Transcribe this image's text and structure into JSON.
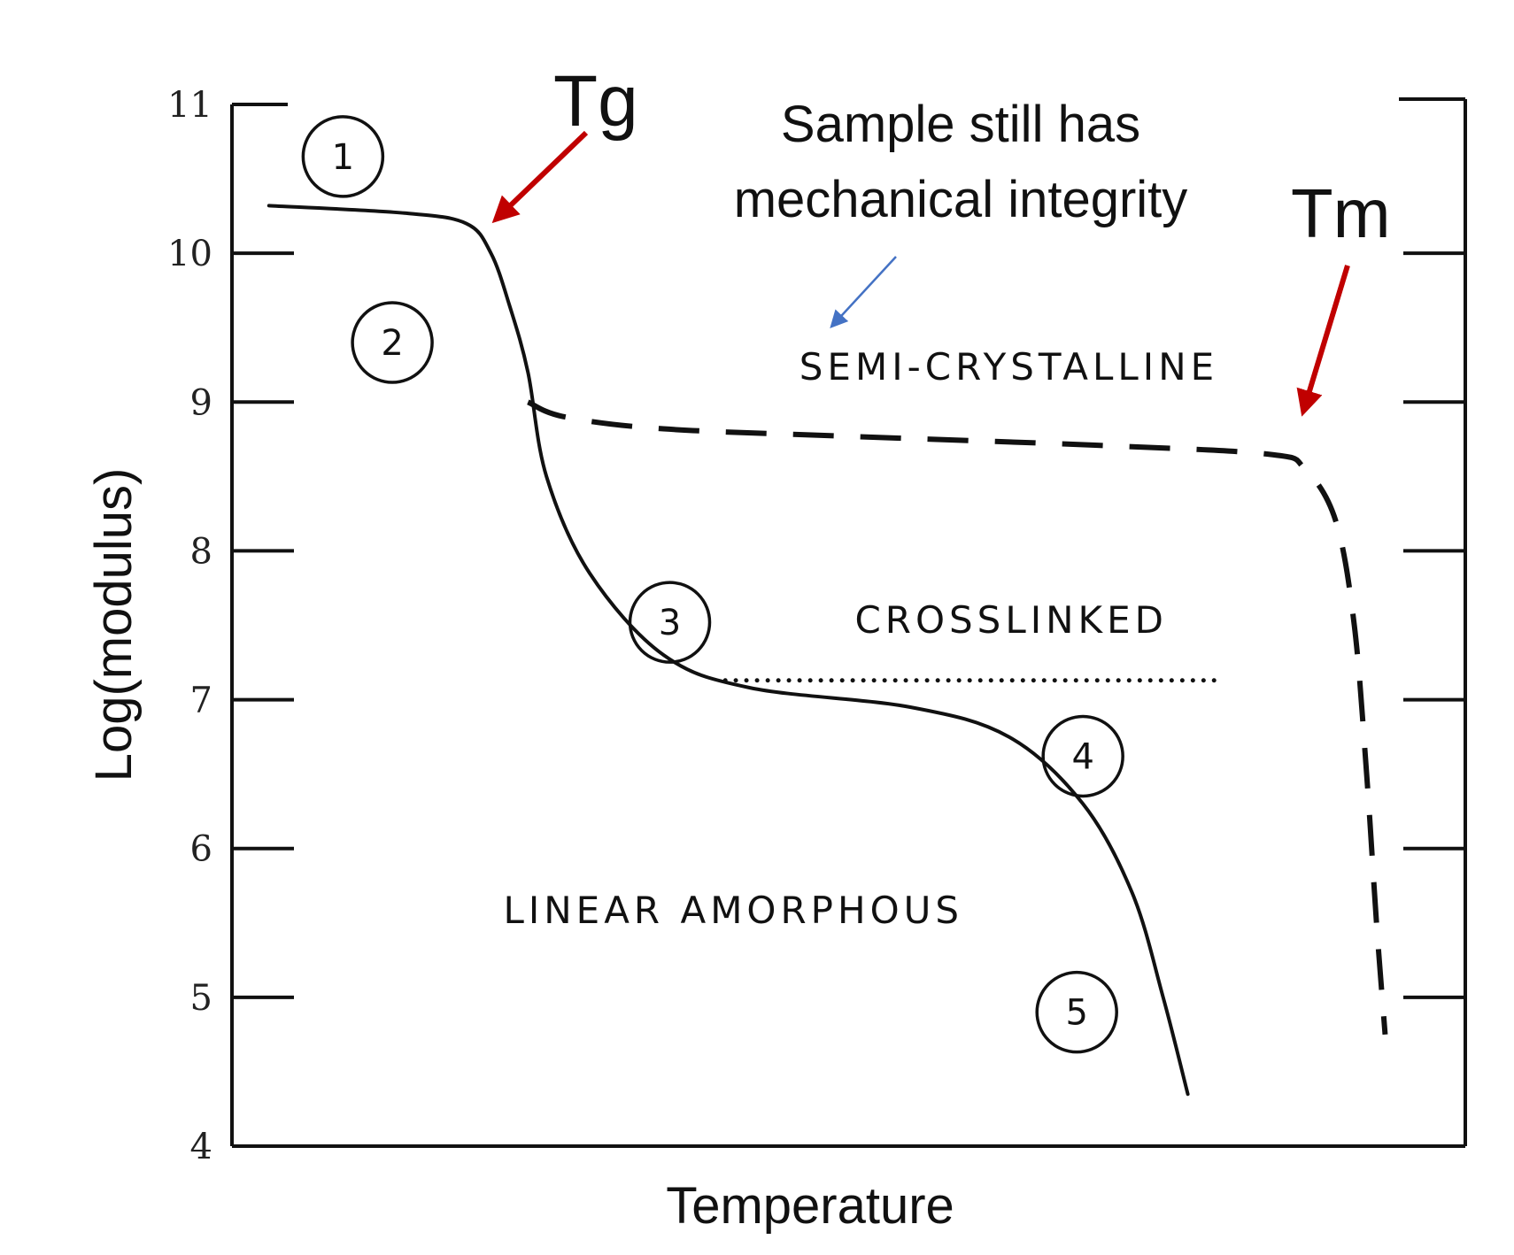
{
  "chart_data": {
    "type": "line",
    "title": "",
    "xlabel": "Temperature",
    "ylabel": "Log(modulus)",
    "ylim": [
      4,
      11
    ],
    "y_ticks": [
      "4",
      "5",
      "6",
      "7",
      "8",
      "9",
      "10",
      "11"
    ],
    "x_ticks": [],
    "grid": false,
    "series": [
      {
        "name": "LINEAR AMORPHOUS",
        "style": "solid",
        "points": [
          [
            0.3,
            10.32
          ],
          [
            1.4,
            10.27
          ],
          [
            1.9,
            10.2
          ],
          [
            2.1,
            10.0
          ],
          [
            2.25,
            9.65
          ],
          [
            2.4,
            9.2
          ],
          [
            2.55,
            8.5
          ],
          [
            2.9,
            7.85
          ],
          [
            3.5,
            7.3
          ],
          [
            4.2,
            7.08
          ],
          [
            5.5,
            6.95
          ],
          [
            6.3,
            6.75
          ],
          [
            6.9,
            6.3
          ],
          [
            7.3,
            5.7
          ],
          [
            7.55,
            5.0
          ],
          [
            7.75,
            4.35
          ]
        ]
      },
      {
        "name": "CROSSLINKED",
        "style": "dotted",
        "points": [
          [
            4.0,
            7.13
          ],
          [
            8.0,
            7.13
          ]
        ]
      },
      {
        "name": "SEMI-CRYSTALLINE",
        "style": "dashed",
        "points": [
          [
            2.4,
            9.0
          ],
          [
            2.7,
            8.9
          ],
          [
            3.5,
            8.82
          ],
          [
            5.0,
            8.77
          ],
          [
            7.0,
            8.71
          ],
          [
            8.4,
            8.65
          ],
          [
            8.7,
            8.55
          ],
          [
            8.95,
            8.2
          ],
          [
            9.1,
            7.5
          ],
          [
            9.2,
            6.5
          ],
          [
            9.28,
            5.5
          ],
          [
            9.35,
            4.75
          ]
        ]
      }
    ],
    "x_domain": [
      0,
      10
    ],
    "markers": [
      {
        "label": "1",
        "x": 0.9,
        "y": 10.65
      },
      {
        "label": "2",
        "x": 1.3,
        "y": 9.4
      },
      {
        "label": "3",
        "x": 3.55,
        "y": 7.52
      },
      {
        "label": "4",
        "x": 6.9,
        "y": 6.62
      },
      {
        "label": "5",
        "x": 6.85,
        "y": 4.9
      }
    ],
    "region_labels": [
      {
        "text": "SEMI-CRYSTALLINE",
        "x": 4.6,
        "y": 9.15
      },
      {
        "text": "CROSSLINKED",
        "x": 5.05,
        "y": 7.45
      },
      {
        "text": "LINEAR AMORPHOUS",
        "x": 2.2,
        "y": 5.5
      }
    ],
    "annotations": [
      {
        "text": "Tg",
        "x": 2.6,
        "y": 11.05,
        "color": "#c00000"
      },
      {
        "text": "Tm",
        "x": 8.75,
        "y": 10.2,
        "color": "#c00000"
      },
      {
        "text": "Sample still has",
        "x": 5.8,
        "y": 11.2,
        "color": "#4472c4"
      },
      {
        "text": "mechanical integrity",
        "x": 5.8,
        "y": 10.7,
        "color": "#4472c4"
      }
    ]
  }
}
